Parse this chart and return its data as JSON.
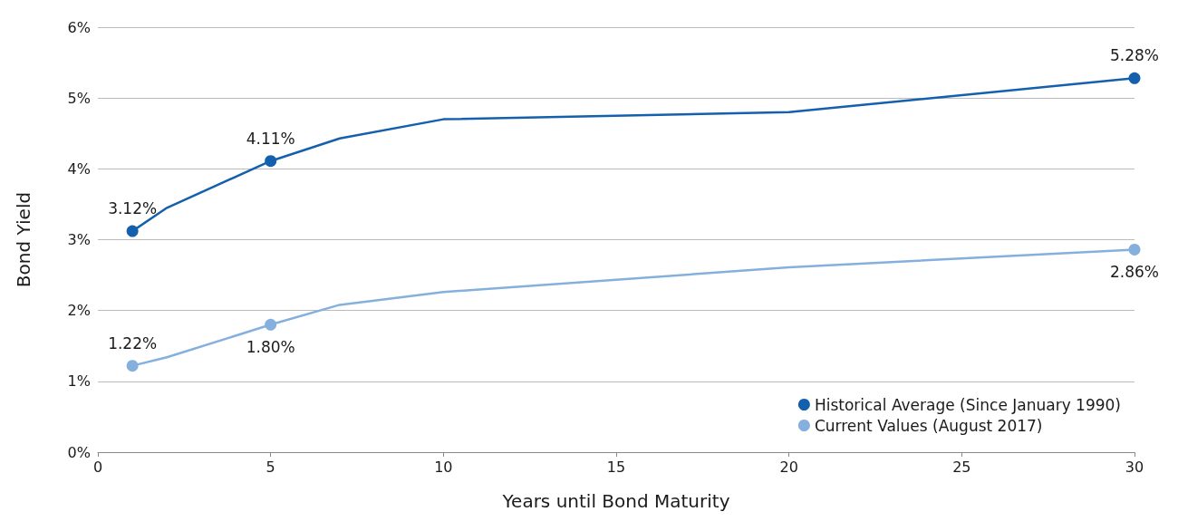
{
  "chart_data": {
    "type": "line",
    "xlabel": "Years until Bond Maturity",
    "ylabel": "Bond Yield",
    "xlim": [
      0,
      30
    ],
    "xticks": [
      0,
      5,
      10,
      15,
      20,
      25,
      30
    ],
    "ylim": [
      0,
      6
    ],
    "yticks": [
      {
        "value": 0,
        "label": "0%"
      },
      {
        "value": 1,
        "label": "1%"
      },
      {
        "value": 2,
        "label": "2%"
      },
      {
        "value": 3,
        "label": "3%"
      },
      {
        "value": 4,
        "label": "4%"
      },
      {
        "value": 5,
        "label": "5%"
      },
      {
        "value": 6,
        "label": "6%"
      }
    ],
    "grid": "y",
    "legend": "bottom right",
    "series": [
      {
        "name": "Historical Average (Since January 1990)",
        "color": "#1460ad",
        "x": [
          1,
          2,
          5,
          7,
          10,
          20,
          30
        ],
        "values": [
          3.12,
          3.45,
          4.11,
          4.43,
          4.7,
          4.8,
          5.28
        ],
        "value_labels": [
          "3.12%",
          null,
          "4.11%",
          null,
          null,
          null,
          "5.28%"
        ]
      },
      {
        "name": "Current Values (August 2017)",
        "color": "#85b0de",
        "x": [
          1,
          2,
          5,
          7,
          10,
          20,
          30
        ],
        "values": [
          1.22,
          1.34,
          1.8,
          2.08,
          2.26,
          2.61,
          2.86
        ],
        "value_labels": [
          "1.22%",
          null,
          "1.80%",
          null,
          null,
          null,
          "2.86%"
        ]
      }
    ]
  }
}
